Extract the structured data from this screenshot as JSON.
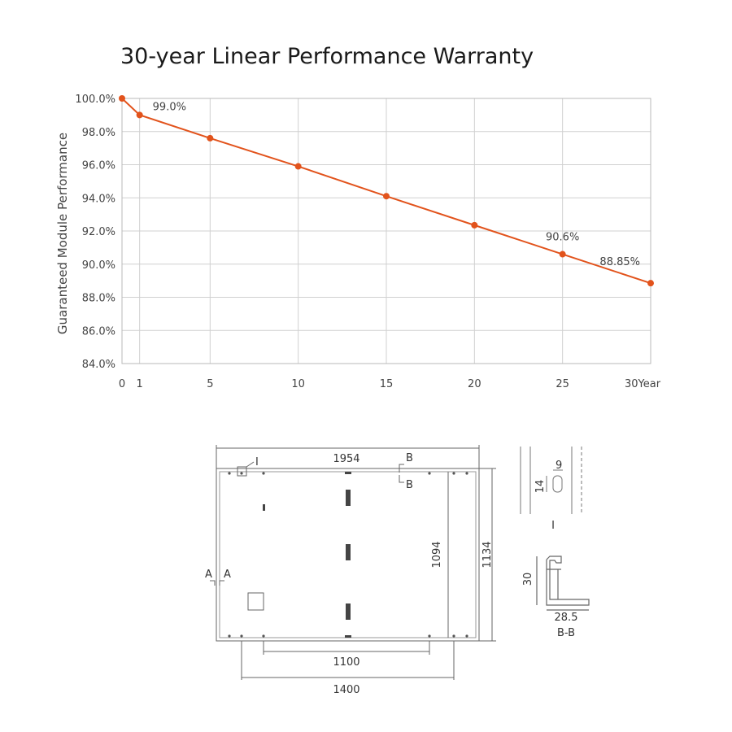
{
  "chart_data": {
    "type": "line",
    "title": "30-year Linear Performance Warranty",
    "ylabel": "Guaranteed Module Performance",
    "xlabel": "",
    "xlim": [
      0,
      30
    ],
    "ylim": [
      84,
      100
    ],
    "x_ticks": [
      {
        "value": 0,
        "label": "0"
      },
      {
        "value": 1,
        "label": "1"
      },
      {
        "value": 5,
        "label": "5"
      },
      {
        "value": 10,
        "label": "10"
      },
      {
        "value": 15,
        "label": "15"
      },
      {
        "value": 20,
        "label": "20"
      },
      {
        "value": 25,
        "label": "25"
      },
      {
        "value": 30,
        "label": "30Year"
      }
    ],
    "y_ticks": [
      {
        "value": 84,
        "label": "84.0%"
      },
      {
        "value": 86,
        "label": "86.0%"
      },
      {
        "value": 88,
        "label": "88.0%"
      },
      {
        "value": 90,
        "label": "90.0%"
      },
      {
        "value": 92,
        "label": "92.0%"
      },
      {
        "value": 94,
        "label": "94.0%"
      },
      {
        "value": 96,
        "label": "96.0%"
      },
      {
        "value": 98,
        "label": "98.0%"
      },
      {
        "value": 100,
        "label": "100.0%"
      }
    ],
    "grid": true,
    "line_color": "#e2531c",
    "series": [
      {
        "x": [
          0,
          1,
          5,
          10,
          15,
          20,
          25,
          30
        ],
        "y": [
          100.0,
          99.0,
          97.6,
          95.9,
          94.1,
          92.35,
          90.6,
          88.85
        ]
      }
    ],
    "annotations": [
      {
        "x": 1,
        "y": 99.0,
        "text": "99.0%"
      },
      {
        "x": 25,
        "y": 90.6,
        "text": "90.6%"
      },
      {
        "x": 30,
        "y": 88.85,
        "text": "88.85%"
      }
    ]
  },
  "drawing": {
    "dim_length": "1954",
    "dim_frame_height": "1134",
    "dim_inner_height": "1094",
    "dim_mount_inner": "1100",
    "dim_mount_outer": "1400",
    "label_detail_I": "I",
    "label_section_B_top": "B",
    "label_section_B_bottom": "B",
    "label_section_A_left": "A",
    "label_section_A_right": "A",
    "detail_hole_width": "9",
    "detail_hole_height": "14",
    "detail_I_caption": "I",
    "section_height": "30",
    "section_width": "28.5",
    "section_caption": "B-B"
  }
}
